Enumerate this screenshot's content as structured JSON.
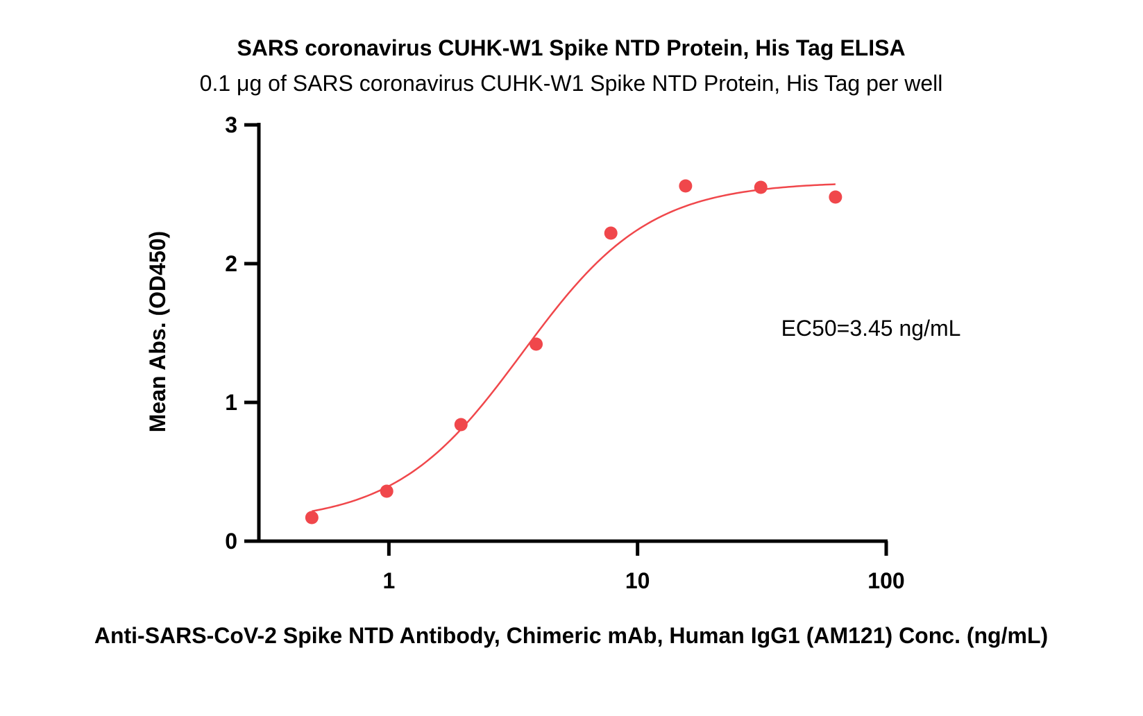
{
  "chart_data": {
    "type": "scatter",
    "title": "SARS coronavirus CUHK-W1 Spike NTD Protein, His Tag ELISA",
    "subtitle": "0.1 μg of SARS coronavirus CUHK-W1 Spike NTD Protein, His Tag per well",
    "xlabel": "Anti-SARS-CoV-2 Spike NTD Antibody, Chimeric mAb, Human IgG1 (AM121) Conc. (ng/mL)",
    "ylabel": "Mean Abs. (OD450)",
    "x_scale": "log",
    "xlim": [
      0.3,
      100
    ],
    "ylim": [
      0,
      3
    ],
    "x_ticks": [
      1,
      10,
      100
    ],
    "x_tick_labels": [
      "1",
      "10",
      "100"
    ],
    "y_ticks": [
      0,
      1,
      2,
      3
    ],
    "y_tick_labels": [
      "0",
      "1",
      "2",
      "3"
    ],
    "grid": false,
    "annotation": "EC50=3.45 ng/mL",
    "marker_color": "#f0474b",
    "line_color": "#f0474b",
    "points": [
      {
        "x": 0.49,
        "y": 0.17
      },
      {
        "x": 0.98,
        "y": 0.36
      },
      {
        "x": 1.95,
        "y": 0.84
      },
      {
        "x": 3.91,
        "y": 1.42
      },
      {
        "x": 7.81,
        "y": 2.22
      },
      {
        "x": 15.6,
        "y": 2.56
      },
      {
        "x": 31.3,
        "y": 2.55
      },
      {
        "x": 62.5,
        "y": 2.48
      }
    ],
    "fit_curve": {
      "model": "4PL",
      "bottom": 0.13,
      "top": 2.59,
      "ec50": 3.45,
      "hill": 1.7,
      "x_range": [
        0.49,
        62.5
      ]
    }
  }
}
